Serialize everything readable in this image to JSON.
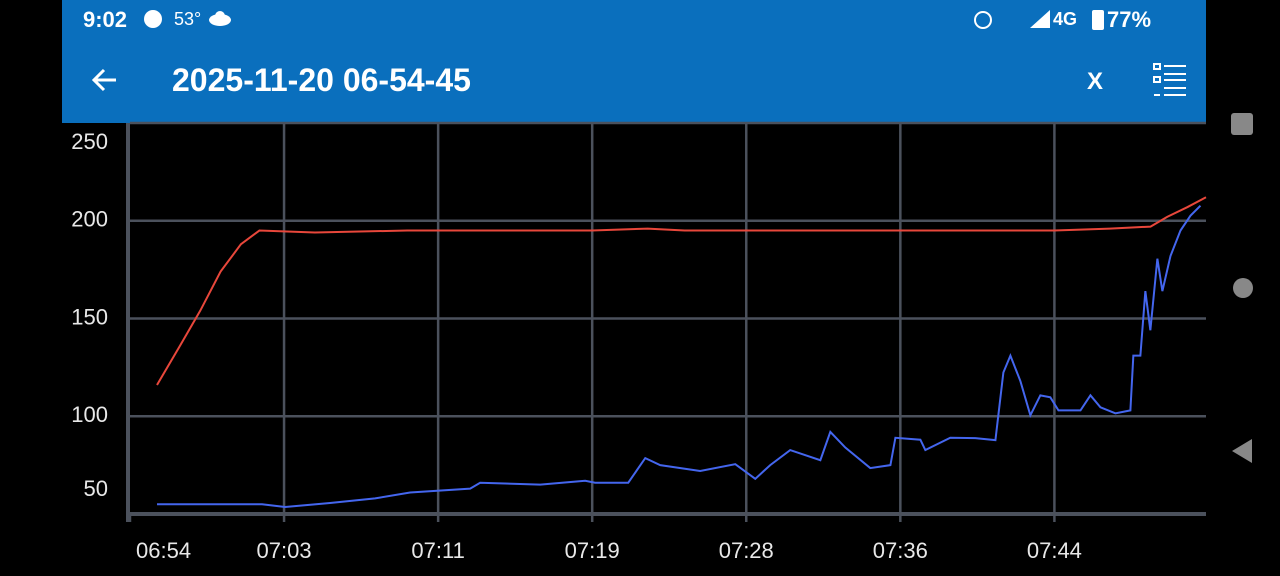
{
  "status_bar": {
    "time": "9:02",
    "temperature": "53°",
    "network": "4G",
    "battery": "77%"
  },
  "app_bar": {
    "title": "2025-11-20 06-54-45",
    "close": "X"
  },
  "chart_data": {
    "type": "line",
    "xlim": [
      0,
      58.2
    ],
    "ylim": [
      50,
      250
    ],
    "xticks": [
      {
        "value": 0,
        "label": "06:54"
      },
      {
        "value": 8.333,
        "label": "07:03"
      },
      {
        "value": 16.667,
        "label": "07:11"
      },
      {
        "value": 25,
        "label": "07:19"
      },
      {
        "value": 33.333,
        "label": "07:28"
      },
      {
        "value": 41.667,
        "label": "07:36"
      },
      {
        "value": 50,
        "label": "07:44"
      }
    ],
    "yticks": [
      50,
      100,
      150,
      200,
      250
    ],
    "grid": true,
    "series": [
      {
        "color": "#e8473b",
        "x": [
          1.46,
          2.7,
          3.8,
          4.9,
          6.0,
          7.0,
          10,
          15,
          20,
          25,
          28,
          30,
          35,
          40,
          45,
          50,
          53,
          55.2,
          56.1,
          57.2,
          58.2
        ],
        "values": [
          116,
          136,
          154,
          174,
          188,
          195,
          194,
          195,
          195,
          195,
          196,
          195,
          195,
          195,
          195,
          195,
          196,
          197,
          202,
          207,
          212
        ]
      },
      {
        "color": "#4466ee",
        "x": [
          1.46,
          7.14,
          8.39,
          10.82,
          13.26,
          15.15,
          18.4,
          18.94,
          22.19,
          24.62,
          25.16,
          26.95,
          27.87,
          28.68,
          30.84,
          32.74,
          33.82,
          34.63,
          35.71,
          37.34,
          37.88,
          38.69,
          40.04,
          41.13,
          41.4,
          42.75,
          43.02,
          44.37,
          45.72,
          46.81,
          47.24,
          47.62,
          48.16,
          48.7,
          49.24,
          49.78,
          50.22,
          51.41,
          51.95,
          52.49,
          53.3,
          54.11,
          54.27,
          54.65,
          54.92,
          55.19,
          55.57,
          55.84,
          56.28,
          56.82,
          57.36,
          57.9
        ],
        "values": [
          55,
          55,
          53.6,
          55.6,
          58,
          61,
          63,
          66,
          65,
          67,
          66,
          66,
          78.6,
          75,
          72,
          75.5,
          68,
          75,
          82.7,
          77.5,
          92,
          84,
          73.5,
          75,
          89,
          88,
          82.7,
          89,
          88.8,
          87.8,
          122.4,
          131,
          118,
          100.5,
          110.7,
          109.7,
          103,
          103,
          110.7,
          104.6,
          101.5,
          103,
          131,
          131,
          164,
          144,
          180.6,
          164,
          182,
          195,
          202.6,
          207.7
        ]
      }
    ]
  }
}
